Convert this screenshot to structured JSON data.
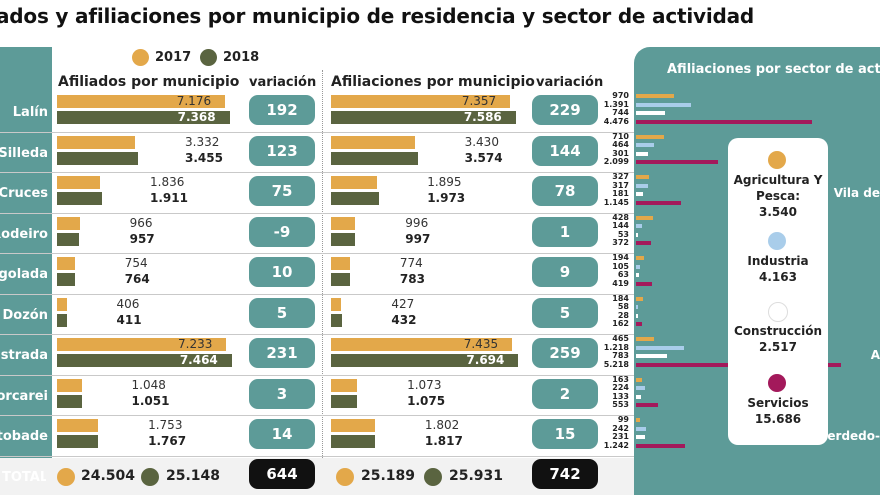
{
  "title": "ados y afiliaciones por municipio de residencia y sector de actividad",
  "legend": [
    {
      "label": "2017",
      "color": "#e3a84a"
    },
    {
      "label": "2018",
      "color": "#5a6440"
    }
  ],
  "headers": {
    "left_section": "Afiliados por municipio",
    "right_section": "Afiliaciones por municipio",
    "variation": "variación",
    "sector_panel": "Afiliaciones por sector de activi"
  },
  "total_label": "TOTAL",
  "sector_side_labels": [
    "Vila de",
    "A",
    "Cerdedo-"
  ],
  "chart_data": [
    {
      "type": "bar",
      "title": "Afiliados por municipio",
      "categories": [
        "Lalín",
        "Silleda",
        "e Cruces",
        "Rodeiro",
        "Agolada",
        "Dozón",
        "Estrada",
        "Forcarei",
        "Cotobade"
      ],
      "series": [
        {
          "name": "2017",
          "values": [
            7176,
            3332,
            1836,
            966,
            754,
            406,
            7233,
            1048,
            1753
          ]
        },
        {
          "name": "2018",
          "values": [
            7368,
            3455,
            1911,
            957,
            764,
            411,
            7464,
            1051,
            1767
          ]
        }
      ],
      "value_labels_2017": [
        "7.176",
        "3.332",
        "1.836",
        "966",
        "754",
        "406",
        "7.233",
        "1.048",
        "1.753"
      ],
      "value_labels_2018": [
        "7.368",
        "3.455",
        "1.911",
        "957",
        "764",
        "411",
        "7.464",
        "1.051",
        "1.767"
      ],
      "variation": [
        "192",
        "123",
        "75",
        "-9",
        "10",
        "5",
        "231",
        "3",
        "14"
      ],
      "totals": {
        "2017": "24.504",
        "2018": "25.148",
        "variation": "644"
      },
      "xlim": [
        0,
        7600
      ]
    },
    {
      "type": "bar",
      "title": "Afiliaciones por municipio",
      "categories": [
        "Lalín",
        "Silleda",
        "e Cruces",
        "Rodeiro",
        "Agolada",
        "Dozón",
        "Estrada",
        "Forcarei",
        "Cotobade"
      ],
      "series": [
        {
          "name": "2017",
          "values": [
            7357,
            3430,
            1895,
            996,
            774,
            427,
            7435,
            1073,
            1802
          ]
        },
        {
          "name": "2018",
          "values": [
            7586,
            3574,
            1973,
            997,
            783,
            432,
            7694,
            1075,
            1817
          ]
        }
      ],
      "value_labels_2017": [
        "7.357",
        "3.430",
        "1.895",
        "996",
        "774",
        "427",
        "7.435",
        "1.073",
        "1.802"
      ],
      "value_labels_2018": [
        "7.586",
        "3.574",
        "1.973",
        "997",
        "783",
        "432",
        "7.694",
        "1.075",
        "1.817"
      ],
      "variation": [
        "229",
        "144",
        "78",
        "1",
        "9",
        "5",
        "259",
        "2",
        "15"
      ],
      "totals": {
        "2017": "25.189",
        "2018": "25.931",
        "variation": "742"
      },
      "xlim": [
        0,
        7800
      ]
    },
    {
      "type": "bar",
      "title": "Afiliaciones por sector de activi",
      "sectors": [
        {
          "name": "Agricultura Y Pesca",
          "total": "3.540",
          "color": "#e3a84a"
        },
        {
          "name": "Industria",
          "total": "4.163",
          "color": "#a9cdea"
        },
        {
          "name": "Construcción",
          "total": "2.517",
          "color": "#ffffff"
        },
        {
          "name": "Servicios",
          "total": "15.686",
          "color": "#a3195b"
        }
      ],
      "rows": [
        {
          "values": [
            970,
            1391,
            744,
            4476
          ],
          "labels": [
            "970",
            "1.391",
            "744",
            "4.476"
          ]
        },
        {
          "values": [
            710,
            464,
            301,
            2099
          ],
          "labels": [
            "710",
            "464",
            "301",
            "2.099"
          ]
        },
        {
          "values": [
            327,
            317,
            181,
            1145
          ],
          "labels": [
            "327",
            "317",
            "181",
            "1.145"
          ]
        },
        {
          "values": [
            428,
            144,
            53,
            372
          ],
          "labels": [
            "428",
            "144",
            "53",
            "372"
          ]
        },
        {
          "values": [
            194,
            105,
            63,
            419
          ],
          "labels": [
            "194",
            "105",
            "63",
            "419"
          ]
        },
        {
          "values": [
            184,
            58,
            28,
            162
          ],
          "labels": [
            "184",
            "58",
            "28",
            "162"
          ]
        },
        {
          "values": [
            465,
            1218,
            783,
            5218
          ],
          "labels": [
            "465",
            "1.218",
            "783",
            "5.218"
          ]
        },
        {
          "values": [
            163,
            224,
            133,
            553
          ],
          "labels": [
            "163",
            "224",
            "133",
            "553"
          ]
        },
        {
          "values": [
            99,
            242,
            231,
            1242
          ],
          "labels": [
            "99",
            "242",
            "231",
            "1.242"
          ]
        }
      ]
    }
  ]
}
